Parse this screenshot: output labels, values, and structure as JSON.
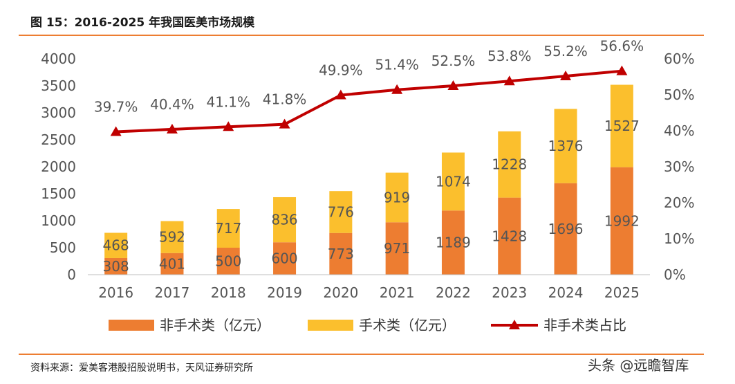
{
  "header": {
    "title": "图 15：2016-2025 年我国医美市场规模"
  },
  "footer": {
    "source": "资料来源：爱美客港股招股说明书，天风证券研究所",
    "watermark": "头条 @远瞻智库"
  },
  "chart_data": {
    "type": "bar",
    "stacked": true,
    "categories": [
      "2016",
      "2017",
      "2018",
      "2019",
      "2020",
      "2021",
      "2022",
      "2023",
      "2024",
      "2025"
    ],
    "series": [
      {
        "name": "非手术类（亿元）",
        "type": "bar",
        "axis": "left",
        "color": "#ED7D31",
        "values": [
          308,
          401,
          500,
          600,
          773,
          971,
          1189,
          1428,
          1696,
          1992
        ]
      },
      {
        "name": "手术类（亿元）",
        "type": "bar",
        "axis": "left",
        "color": "#FBBF2D",
        "values": [
          468,
          592,
          717,
          836,
          776,
          919,
          1074,
          1228,
          1376,
          1527
        ]
      },
      {
        "name": "非手术类占比",
        "type": "line",
        "axis": "right",
        "color": "#C00000",
        "marker": "triangle",
        "values": [
          39.7,
          40.4,
          41.1,
          41.8,
          49.9,
          51.4,
          52.5,
          53.8,
          55.2,
          56.6
        ],
        "labels": [
          "39.7%",
          "40.4%",
          "41.1%",
          "41.8%",
          "49.9%",
          "51.4%",
          "52.5%",
          "53.8%",
          "55.2%",
          "56.6%"
        ]
      }
    ],
    "ylim": [
      0,
      4000
    ],
    "yticks": [
      "0",
      "500",
      "1000",
      "1500",
      "2000",
      "2500",
      "3000",
      "3500",
      "4000"
    ],
    "y2lim": [
      0,
      60
    ],
    "y2ticks": [
      "0%",
      "10%",
      "20%",
      "30%",
      "40%",
      "50%",
      "60%"
    ],
    "grid": false,
    "legend": "bottom"
  }
}
